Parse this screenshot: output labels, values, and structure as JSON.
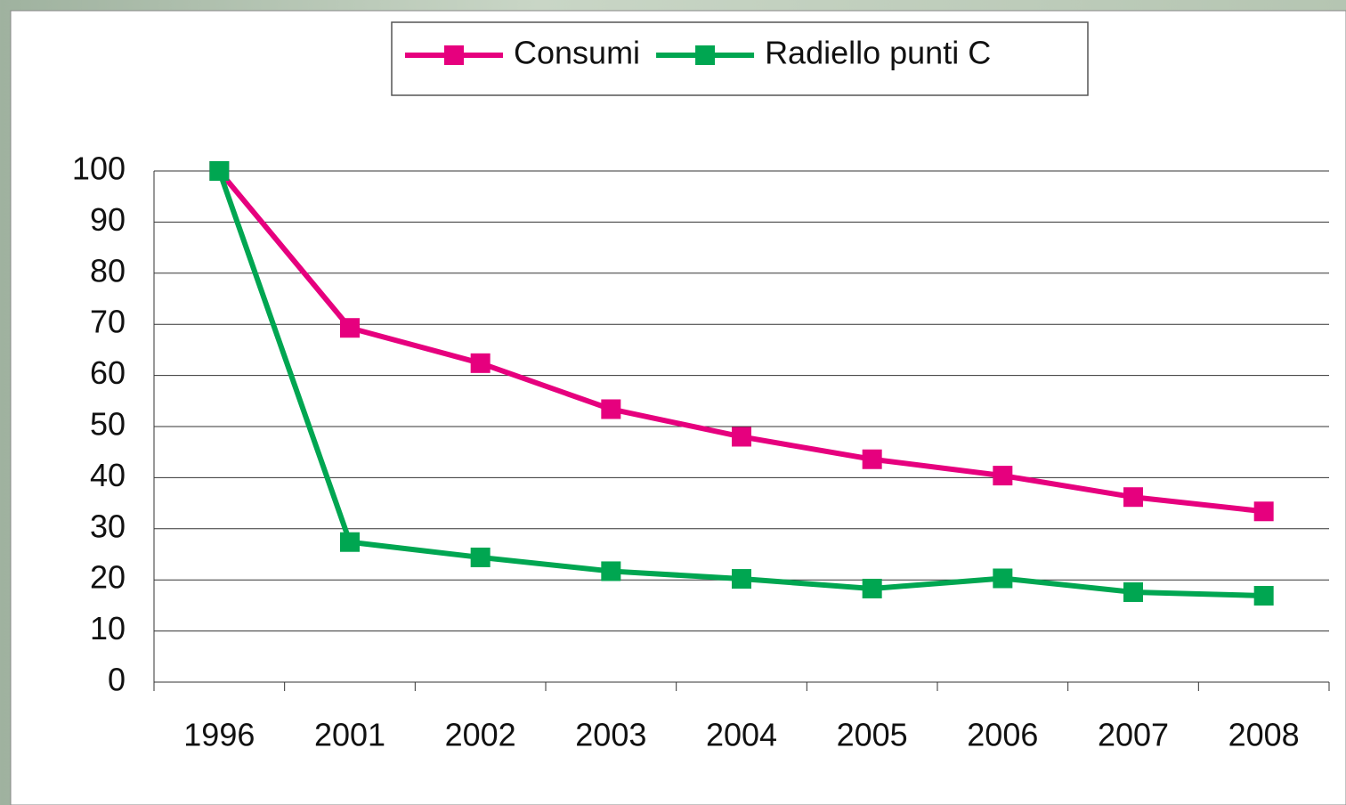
{
  "chart_data": {
    "type": "line",
    "categories": [
      "1996",
      "2001",
      "2002",
      "2003",
      "2004",
      "2005",
      "2006",
      "2007",
      "2008"
    ],
    "series": [
      {
        "name": "Consumi",
        "color": "#e6007e",
        "values": [
          100,
          69.3,
          62.4,
          53.4,
          48.0,
          43.6,
          40.4,
          36.2,
          33.4
        ]
      },
      {
        "name": "Radiello punti C",
        "color": "#00a651",
        "values": [
          100,
          27.4,
          24.4,
          21.7,
          20.2,
          18.3,
          20.3,
          17.6,
          16.9
        ]
      }
    ],
    "ylim": [
      0,
      100
    ],
    "yticks": [
      0,
      10,
      20,
      30,
      40,
      50,
      60,
      70,
      80,
      90,
      100
    ],
    "grid": true,
    "legend": "top"
  }
}
